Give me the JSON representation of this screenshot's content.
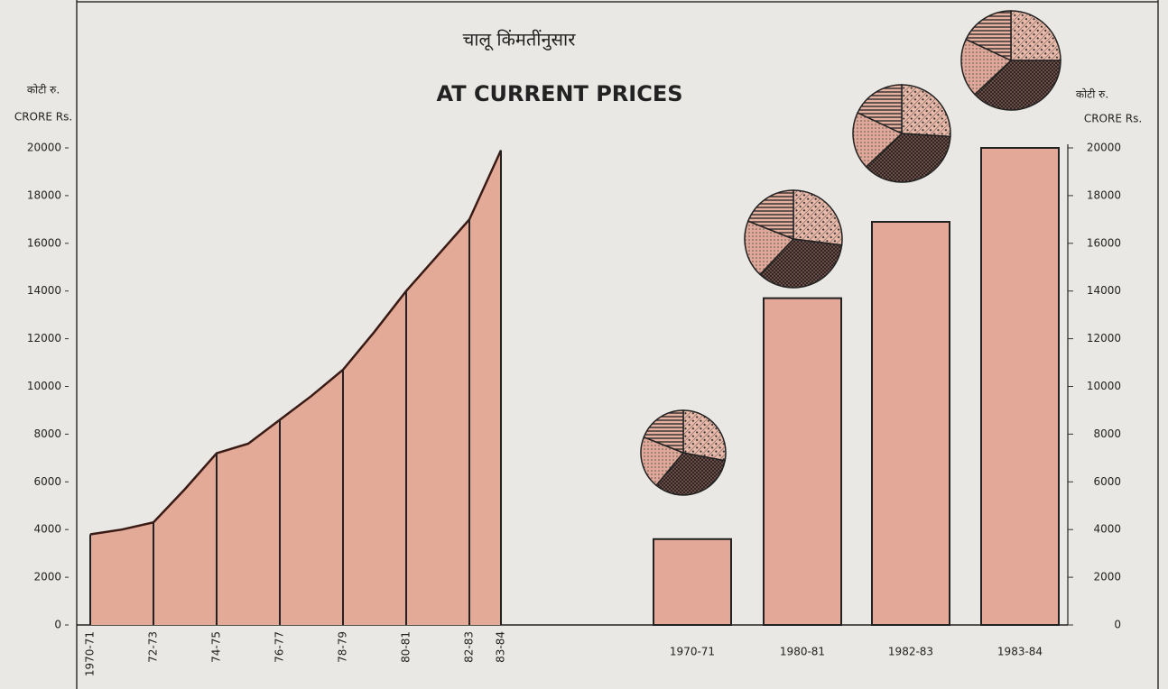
{
  "chart_data": [
    {
      "type": "area",
      "title": "चालू किंमतींनुसार",
      "subtitle": "AT CURRENT PRICES",
      "y_label_local": "कोटी रु.",
      "y_label": "CRORE Rs.",
      "categories": [
        "1970-71",
        null,
        "72-73",
        null,
        "74-75",
        null,
        "76-77",
        null,
        "78-79",
        null,
        "80-81",
        null,
        "82-83",
        "83-84"
      ],
      "values": [
        3800,
        4000,
        4300,
        5700,
        7200,
        7600,
        8600,
        9600,
        10700,
        12300,
        14000,
        15500,
        17000,
        19900
      ],
      "color": "#e4aa98",
      "ylim": [
        0,
        20000
      ],
      "yticks": [
        0,
        2000,
        4000,
        6000,
        8000,
        10000,
        12000,
        14000,
        16000,
        18000,
        20000
      ]
    },
    {
      "type": "bar",
      "y_label_local": "कोटी रु.",
      "y_label": "CRORE Rs.",
      "categories": [
        "1970-71",
        "1980-81",
        "1982-83",
        "1983-84"
      ],
      "values": [
        3600,
        13700,
        16900,
        20000
      ],
      "color": "#e3a898",
      "ylim": [
        0,
        20000
      ],
      "yticks": [
        0,
        2000,
        4000,
        6000,
        8000,
        10000,
        12000,
        14000,
        16000,
        18000,
        20000
      ],
      "pies": [
        {
          "type": "pie",
          "values": [
            28,
            33,
            20,
            19
          ]
        },
        {
          "type": "pie",
          "values": [
            27,
            35,
            19,
            19
          ]
        },
        {
          "type": "pie",
          "values": [
            26,
            37,
            19,
            18
          ]
        },
        {
          "type": "pie",
          "values": [
            25,
            38,
            19,
            18
          ]
        }
      ]
    }
  ]
}
